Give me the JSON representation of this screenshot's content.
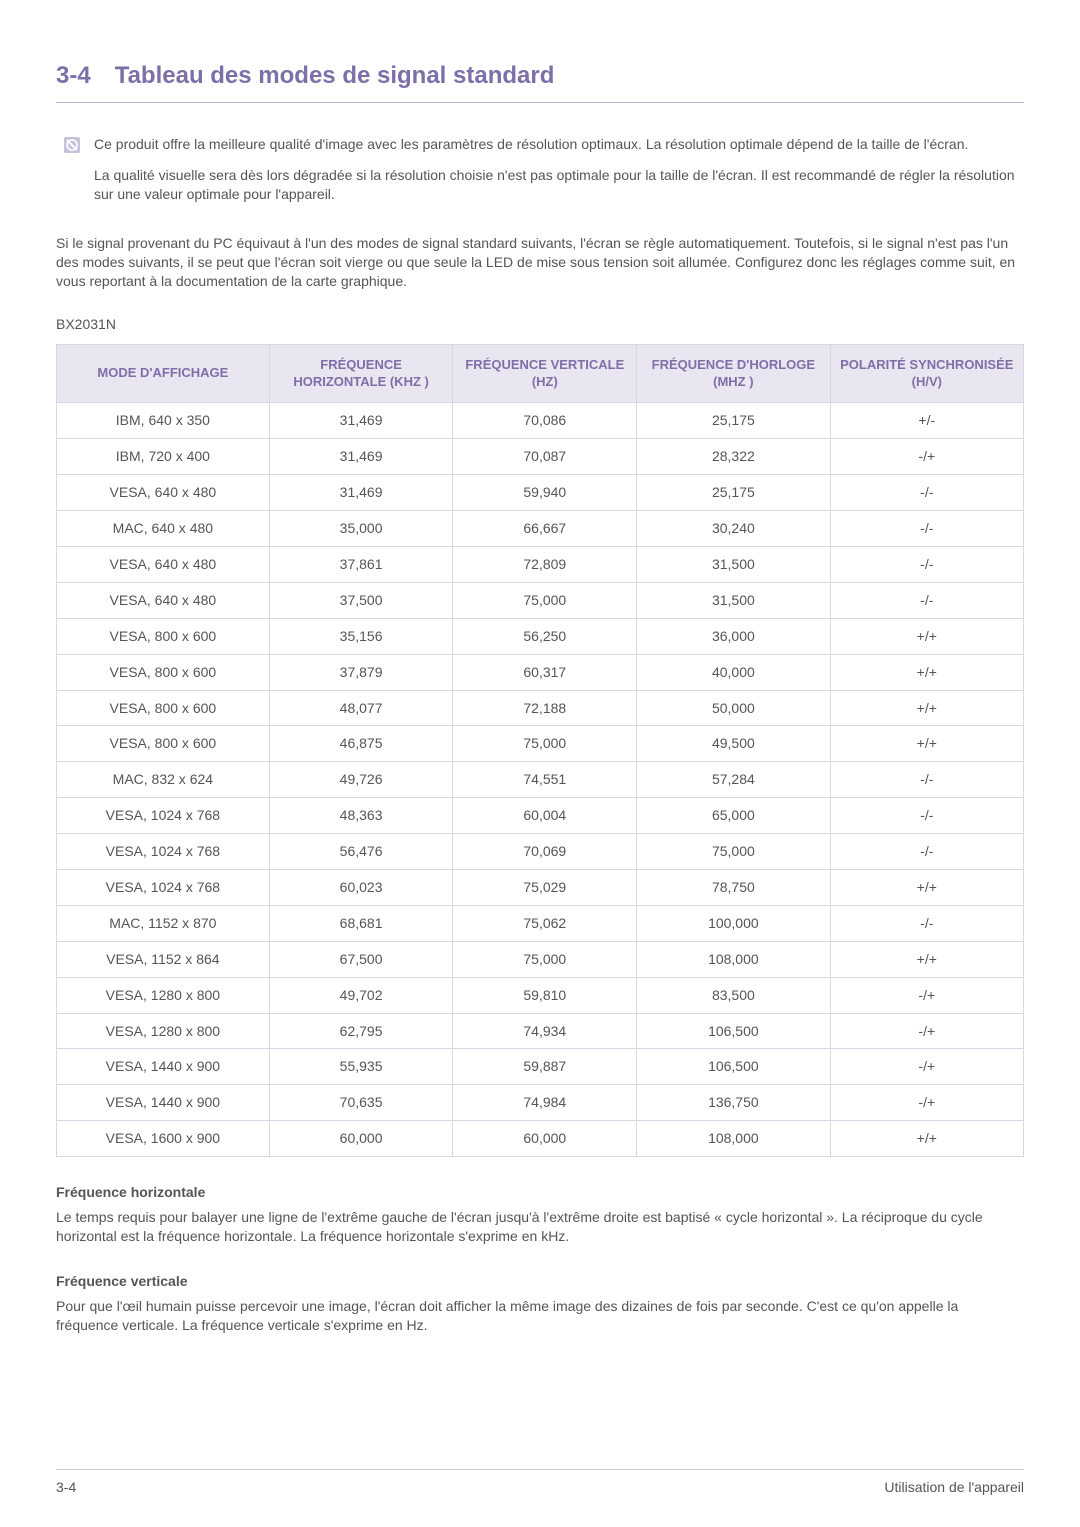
{
  "heading": {
    "number": "3-4",
    "title": "Tableau des modes de signal standard"
  },
  "note": {
    "p1": "Ce produit offre la meilleure qualité d'image avec les paramètres de résolution optimaux. La résolution optimale dépend de la taille de l'écran.",
    "p2": "La qualité visuelle sera dès lors dégradée si la résolution choisie n'est pas optimale pour la taille de l'écran. Il est recommandé de régler la résolution sur une valeur optimale pour l'appareil."
  },
  "intro": "Si le signal provenant du PC équivaut à l'un des modes de signal standard suivants, l'écran se règle automatiquement. Toutefois, si le signal n'est pas l'un des modes suivants, il se peut que l'écran soit vierge ou que seule la LED de mise sous tension soit allumée. Configurez donc les réglages comme suit, en vous reportant à la documentation de la carte graphique.",
  "model": "BX2031N",
  "table": {
    "columns": [
      "MODE D'AFFICHAGE",
      "FRÉQUENCE HORIZONTALE (KHZ )",
      "FRÉQUENCE VERTICALE (HZ)",
      "FRÉQUENCE D'HORLOGE (MHZ )",
      "POLARITÉ SYNCHRONISÉE (H/V)"
    ],
    "col_widths": [
      "22%",
      "19%",
      "19%",
      "20%",
      "20%"
    ],
    "header_bg": "#eae6f1",
    "header_color": "#7d6fa8",
    "border_color": "#d9d5e4",
    "rows": [
      [
        "IBM, 640 x 350",
        "31,469",
        "70,086",
        "25,175",
        "+/-"
      ],
      [
        "IBM, 720 x 400",
        "31,469",
        "70,087",
        "28,322",
        "-/+"
      ],
      [
        "VESA, 640 x 480",
        "31,469",
        "59,940",
        "25,175",
        "-/-"
      ],
      [
        "MAC, 640 x 480",
        "35,000",
        "66,667",
        "30,240",
        "-/-"
      ],
      [
        "VESA, 640 x 480",
        "37,861",
        "72,809",
        "31,500",
        "-/-"
      ],
      [
        "VESA, 640 x 480",
        "37,500",
        "75,000",
        "31,500",
        "-/-"
      ],
      [
        "VESA, 800 x 600",
        "35,156",
        "56,250",
        "36,000",
        "+/+"
      ],
      [
        "VESA, 800 x 600",
        "37,879",
        "60,317",
        "40,000",
        "+/+"
      ],
      [
        "VESA, 800 x 600",
        "48,077",
        "72,188",
        "50,000",
        "+/+"
      ],
      [
        "VESA, 800 x 600",
        "46,875",
        "75,000",
        "49,500",
        "+/+"
      ],
      [
        "MAC, 832 x 624",
        "49,726",
        "74,551",
        "57,284",
        "-/-"
      ],
      [
        "VESA, 1024 x 768",
        "48,363",
        "60,004",
        "65,000",
        "-/-"
      ],
      [
        "VESA, 1024 x 768",
        "56,476",
        "70,069",
        "75,000",
        "-/-"
      ],
      [
        "VESA, 1024 x 768",
        "60,023",
        "75,029",
        "78,750",
        "+/+"
      ],
      [
        "MAC, 1152 x 870",
        "68,681",
        "75,062",
        "100,000",
        "-/-"
      ],
      [
        "VESA, 1152 x 864",
        "67,500",
        "75,000",
        "108,000",
        "+/+"
      ],
      [
        "VESA, 1280 x 800",
        "49,702",
        "59,810",
        "83,500",
        "-/+"
      ],
      [
        "VESA, 1280 x 800",
        "62,795",
        "74,934",
        "106,500",
        "-/+"
      ],
      [
        "VESA, 1440 x 900",
        "55,935",
        "59,887",
        "106,500",
        "-/+"
      ],
      [
        "VESA, 1440 x 900",
        "70,635",
        "74,984",
        "136,750",
        "-/+"
      ],
      [
        "VESA, 1600 x 900",
        "60,000",
        "60,000",
        "108,000",
        "+/+"
      ]
    ]
  },
  "defs": {
    "h_title": "Fréquence horizontale",
    "h_body": "Le temps requis pour balayer une ligne de l'extrême gauche de l'écran jusqu'à l'extrême droite est baptisé « cycle horizontal ». La réciproque du cycle horizontal est la fréquence horizontale. La fréquence horizontale s'exprime en kHz.",
    "v_title": "Fréquence verticale",
    "v_body": "Pour que l'œil humain puisse percevoir une image, l'écran doit afficher la même image des dizaines de fois par seconde. C'est ce qu'on appelle la fréquence verticale. La fréquence verticale s'exprime en Hz."
  },
  "footer": {
    "left": "3-4",
    "right": "Utilisation de l'appareil"
  },
  "colors": {
    "accent": "#7d6fa8",
    "text": "#555555",
    "rule": "#c0b8d4",
    "note_icon_bg": "#c7c2dc",
    "note_icon_fg": "#ffffff"
  }
}
